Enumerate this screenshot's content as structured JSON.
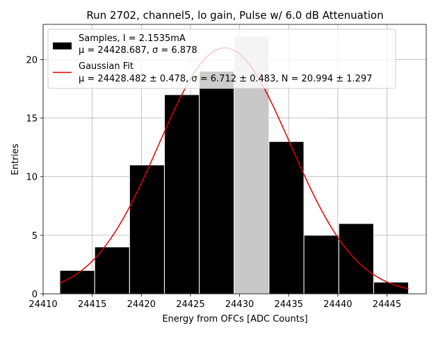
{
  "chart_data": {
    "type": "bar",
    "title": "Run 2702, channel5, lo gain, Pulse w/ 6.0 dB Attenuation",
    "xlabel": "Energy from OFCs [ADC Counts]",
    "ylabel": "Entries",
    "xlim": [
      24410,
      24449
    ],
    "ylim": [
      0,
      23
    ],
    "xticks": [
      "24410",
      "24415",
      "24420",
      "24425",
      "24430",
      "24435",
      "24440",
      "24445"
    ],
    "yticks": [
      "0",
      "5",
      "10",
      "15",
      "20"
    ],
    "grid": true,
    "legend_position": "top-left",
    "bin_width": 3.545,
    "bins": [
      {
        "left": 24411.7,
        "value": 2
      },
      {
        "left": 24415.25,
        "value": 4
      },
      {
        "left": 24418.8,
        "value": 11
      },
      {
        "left": 24422.35,
        "value": 17
      },
      {
        "left": 24425.9,
        "value": 19
      },
      {
        "left": 24429.45,
        "value": 22
      },
      {
        "left": 24433.0,
        "value": 13
      },
      {
        "left": 24436.55,
        "value": 5
      },
      {
        "left": 24440.1,
        "value": 6
      },
      {
        "left": 24443.65,
        "value": 1
      }
    ],
    "highlight_bin_index": 5,
    "series": [
      {
        "name": "Samples, I = 2.1535mA",
        "stats": "μ = 24428.687, σ = 6.878",
        "color": "#000000",
        "highlight_color": "#c8c8c8"
      },
      {
        "name": "Gaussian Fit",
        "stats": "μ = 24428.482 ± 0.478, σ = 6.712 ± 0.483, N = 20.994 ± 1.297",
        "color": "#e00000",
        "fit": {
          "mu": 24428.482,
          "sigma": 6.712,
          "N": 20.994,
          "x_range": [
            24411.7,
            24447.2
          ]
        }
      }
    ]
  }
}
